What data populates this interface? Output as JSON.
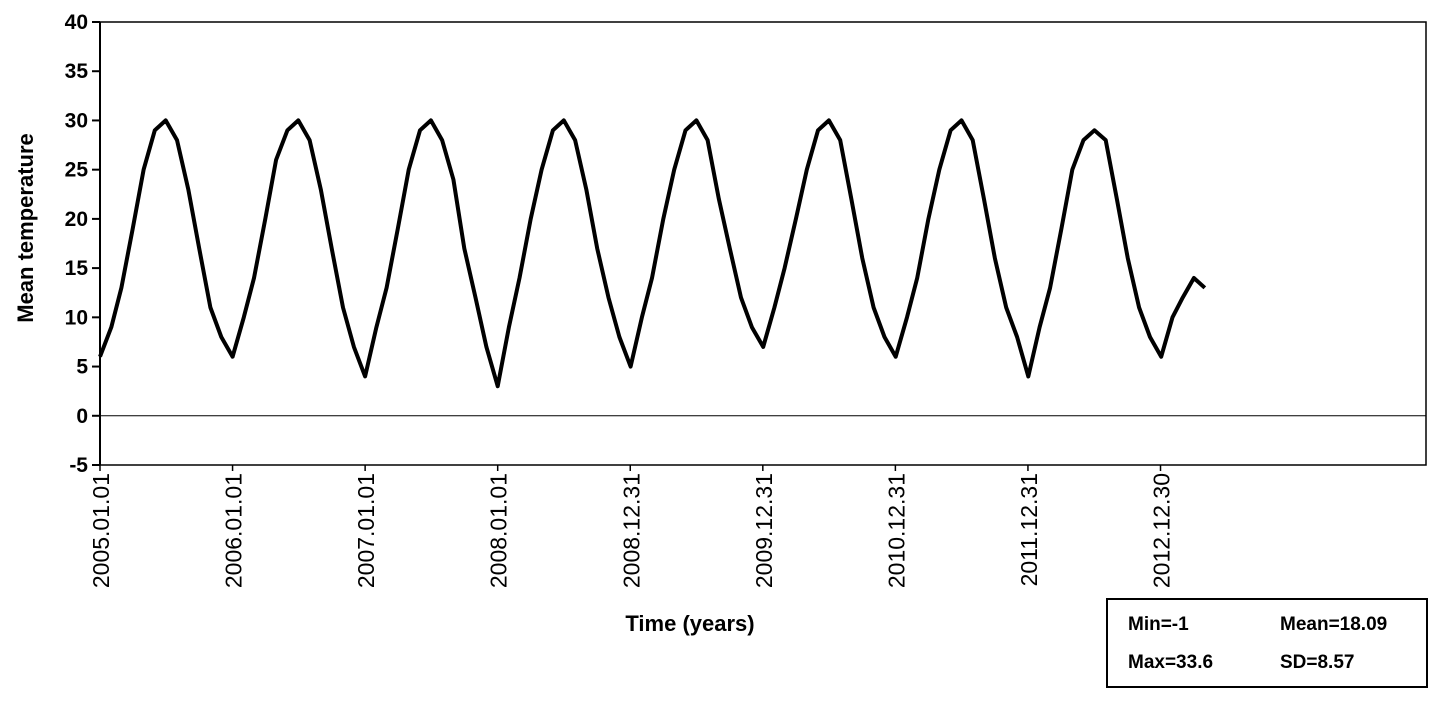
{
  "chart_data": {
    "type": "line",
    "title": "",
    "xlabel": "Time (years)",
    "ylabel": "Mean temperature",
    "ylim": [
      -5,
      40
    ],
    "yticks": [
      -5,
      0,
      5,
      10,
      15,
      20,
      25,
      30,
      35,
      40
    ],
    "xlim": [
      "2005-01-01",
      "2014-12-31"
    ],
    "xtick_labels": [
      "2005.01.01",
      "2006.01.01",
      "2007.01.01",
      "2008.01.01",
      "2008.12.31",
      "2009.12.31",
      "2010.12.31",
      "2011.12.31",
      "2012.12.30"
    ],
    "xtick_dates": [
      "2005-01-01",
      "2006-01-01",
      "2007-01-01",
      "2008-01-01",
      "2008-12-31",
      "2009-12-31",
      "2010-12-31",
      "2011-12-31",
      "2012-12-30"
    ],
    "grid": false,
    "line_color": "#000000",
    "series": [
      {
        "x": [
          "2005-01-01",
          "2005-02-01",
          "2005-03-01",
          "2005-04-01",
          "2005-05-01",
          "2005-06-01",
          "2005-07-01",
          "2005-08-01",
          "2005-09-01",
          "2005-10-01",
          "2005-11-01",
          "2005-12-01",
          "2006-01-01",
          "2006-02-01",
          "2006-03-01",
          "2006-04-01",
          "2006-05-01",
          "2006-06-01",
          "2006-07-01",
          "2006-08-01",
          "2006-09-01",
          "2006-10-01",
          "2006-11-01",
          "2006-12-01",
          "2007-01-01",
          "2007-02-01",
          "2007-03-01",
          "2007-04-01",
          "2007-05-01",
          "2007-06-01",
          "2007-07-01",
          "2007-08-01",
          "2007-09-01",
          "2007-10-01",
          "2007-11-01",
          "2007-12-01",
          "2008-01-01",
          "2008-02-01",
          "2008-03-01",
          "2008-04-01",
          "2008-05-01",
          "2008-06-01",
          "2008-07-01",
          "2008-08-01",
          "2008-09-01",
          "2008-10-01",
          "2008-11-01",
          "2008-12-01",
          "2009-01-01",
          "2009-02-01",
          "2009-03-01",
          "2009-04-01",
          "2009-05-01",
          "2009-06-01",
          "2009-07-01",
          "2009-08-01",
          "2009-09-01",
          "2009-10-01",
          "2009-11-01",
          "2009-12-01",
          "2010-01-01",
          "2010-02-01",
          "2010-03-01",
          "2010-04-01",
          "2010-05-01",
          "2010-06-01",
          "2010-07-01",
          "2010-08-01",
          "2010-09-01",
          "2010-10-01",
          "2010-11-01",
          "2010-12-01",
          "2011-01-01",
          "2011-02-01",
          "2011-03-01",
          "2011-04-01",
          "2011-05-01",
          "2011-06-01",
          "2011-07-01",
          "2011-08-01",
          "2011-09-01",
          "2011-10-01",
          "2011-11-01",
          "2011-12-01",
          "2012-01-01",
          "2012-02-01",
          "2012-03-01",
          "2012-04-01",
          "2012-05-01",
          "2012-06-01",
          "2012-07-01",
          "2012-08-01",
          "2012-09-01",
          "2012-10-01",
          "2012-11-01",
          "2012-12-01",
          "2013-01-01",
          "2013-02-01",
          "2013-03-01",
          "2013-04-01",
          "2013-05-01"
        ],
        "values": [
          6,
          9,
          13,
          19,
          25,
          29,
          30,
          28,
          23,
          17,
          11,
          8,
          6,
          10,
          14,
          20,
          26,
          29,
          30,
          28,
          23,
          17,
          11,
          7,
          4,
          9,
          13,
          19,
          25,
          29,
          30,
          28,
          24,
          17,
          12,
          7,
          3,
          9,
          14,
          20,
          25,
          29,
          30,
          28,
          23,
          17,
          12,
          8,
          5,
          10,
          14,
          20,
          25,
          29,
          30,
          28,
          22,
          17,
          12,
          9,
          7,
          11,
          15,
          20,
          25,
          29,
          30,
          28,
          22,
          16,
          11,
          8,
          6,
          10,
          14,
          20,
          25,
          29,
          30,
          28,
          22,
          16,
          11,
          8,
          4,
          9,
          13,
          19,
          25,
          28,
          29,
          28,
          22,
          16,
          11,
          8,
          6,
          10,
          12,
          14,
          13
        ]
      }
    ]
  },
  "stats": {
    "min": "Min=-1",
    "mean": "Mean=18.09",
    "max": "Max=33.6",
    "sd": "SD=8.57"
  }
}
